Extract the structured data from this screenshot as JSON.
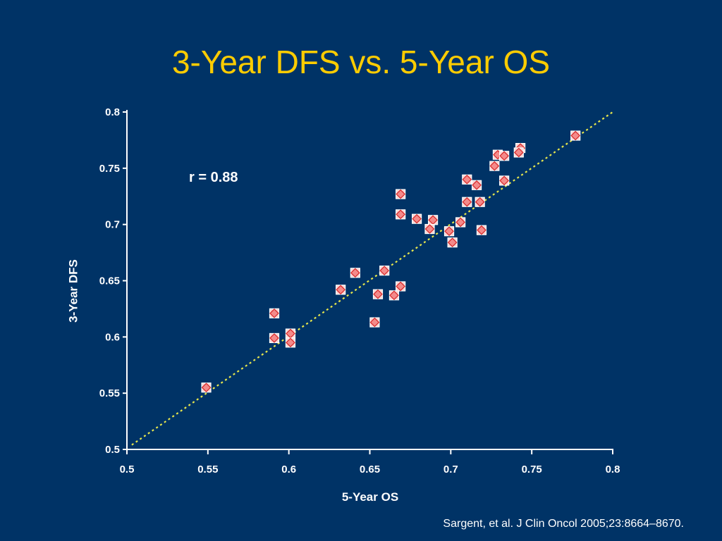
{
  "slide": {
    "title": "3-Year DFS vs. 5-Year OS",
    "citation": "Sargent, et al. J Clin Oncol 2005;23:8664–8670."
  },
  "colors": {
    "background": "#003366",
    "title": "#FFCC00",
    "axis": "#FFFFFF",
    "fit_line": "#E6E64C",
    "marker_fill": "#FAD4D4",
    "marker_border": "#FFFFFF",
    "marker_diamond_fill": "#F48A8A",
    "marker_diamond_edge": "#D62828"
  },
  "chart_data": {
    "type": "scatter",
    "xlabel": "5-Year OS",
    "ylabel": "3-Year DFS",
    "xlim": [
      0.5,
      0.8
    ],
    "ylim": [
      0.5,
      0.8
    ],
    "xticks": [
      "0.5",
      "0.55",
      "0.6",
      "0.65",
      "0.7",
      "0.75",
      "0.8"
    ],
    "yticks": [
      "0.5",
      "0.55",
      "0.6",
      "0.65",
      "0.7",
      "0.75",
      "0.8"
    ],
    "grid": false,
    "legend": "none",
    "annotation": "r = 0.88",
    "series": [
      {
        "marker": "square-diamond",
        "x": [
          0.549,
          0.591,
          0.591,
          0.601,
          0.601,
          0.632,
          0.641,
          0.653,
          0.655,
          0.659,
          0.665,
          0.669,
          0.669,
          0.669,
          0.679,
          0.689,
          0.687,
          0.699,
          0.701,
          0.706,
          0.71,
          0.71,
          0.716,
          0.718,
          0.719,
          0.727,
          0.729,
          0.733,
          0.733,
          0.743,
          0.742,
          0.777
        ],
        "y": [
          0.555,
          0.621,
          0.599,
          0.603,
          0.595,
          0.642,
          0.657,
          0.613,
          0.638,
          0.659,
          0.637,
          0.645,
          0.727,
          0.709,
          0.705,
          0.704,
          0.696,
          0.694,
          0.684,
          0.702,
          0.74,
          0.72,
          0.735,
          0.72,
          0.695,
          0.752,
          0.762,
          0.761,
          0.739,
          0.768,
          0.764,
          0.779
        ]
      }
    ],
    "fit_line": {
      "style": "dotted",
      "x": [
        0.503,
        0.8
      ],
      "y": [
        0.504,
        0.8
      ]
    }
  }
}
